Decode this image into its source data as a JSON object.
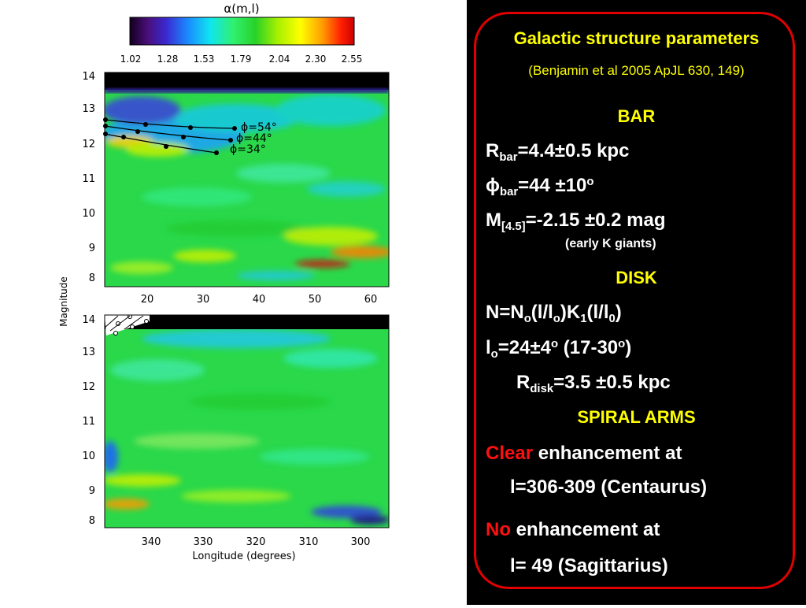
{
  "figure": {
    "colorbar": {
      "title": "α(m,l)",
      "ticks": [
        "1.02",
        "1.28",
        "1.53",
        "1.79",
        "2.04",
        "2.30",
        "2.55"
      ],
      "colors": [
        "#1a0030",
        "#5a1aa0",
        "#2a2ad0",
        "#1fa0ff",
        "#14f0f0",
        "#3cf05a",
        "#22cc22",
        "#b8f000",
        "#ffff00",
        "#ffa000",
        "#ff2a00",
        "#d00000"
      ]
    },
    "top_panel": {
      "y_ticks": [
        "14",
        "13",
        "12",
        "11",
        "10",
        "9",
        "8"
      ],
      "x_ticks": [
        "20",
        "30",
        "40",
        "50",
        "60"
      ],
      "phi_labels": [
        "ϕ=54°",
        "ϕ=44°",
        "ϕ=34°"
      ]
    },
    "bottom_panel": {
      "y_ticks": [
        "14",
        "13",
        "12",
        "11",
        "10",
        "9",
        "8"
      ],
      "x_ticks": [
        "340",
        "330",
        "320",
        "310",
        "300"
      ]
    },
    "y_axis_label": "Magnitude",
    "x_axis_label": "Longitude (degrees)"
  },
  "panel": {
    "title": "Galactic structure parameters",
    "reference": "(Benjamin et al 2005 ApJL 630, 149)",
    "bar_heading": "BAR",
    "r_bar_prefix": "R",
    "r_bar_sub": "bar",
    "r_bar_value": "=4.4±0.5 kpc",
    "phi_bar_prefix": "ϕ",
    "phi_bar_sub": "bar",
    "phi_bar_value": "=44 ±10",
    "phi_bar_sup": "o",
    "m_prefix": "M",
    "m_sub": "[4.5]",
    "m_value": "=-2.15 ±0.2 mag",
    "m_note": "(early K giants)",
    "disk_heading": "DISK",
    "n_formula": {
      "p1": "N=N",
      "s1": "o",
      "p2": "(l/l",
      "s2": "o",
      "p3": ")K",
      "s3": "1",
      "p4": "(l/l",
      "s4": "0",
      "p5": ")"
    },
    "lo_formula": {
      "p1": "l",
      "s1": "o",
      "p2": "=24±4",
      "sup1": "o",
      "p3": " (17-30",
      "sup2": "o",
      "p4": ")"
    },
    "r_disk": {
      "p1": "R",
      "s1": "disk",
      "p2": "=3.5 ±0.5 kpc"
    },
    "spiral_heading": "SPIRAL ARMS",
    "clear_word": "Clear",
    "clear_rest": " enhancement at",
    "centaurus": "l=306-309 (Centaurus)",
    "no_word": "No",
    "no_rest": " enhancement at",
    "sagittarius": "l= 49 (Sagittarius)",
    "colors": {
      "heading": "#ffff00",
      "emphasis": "#ff1010",
      "frame": "#e00000",
      "text": "#ffffff",
      "background": "#000000"
    }
  }
}
